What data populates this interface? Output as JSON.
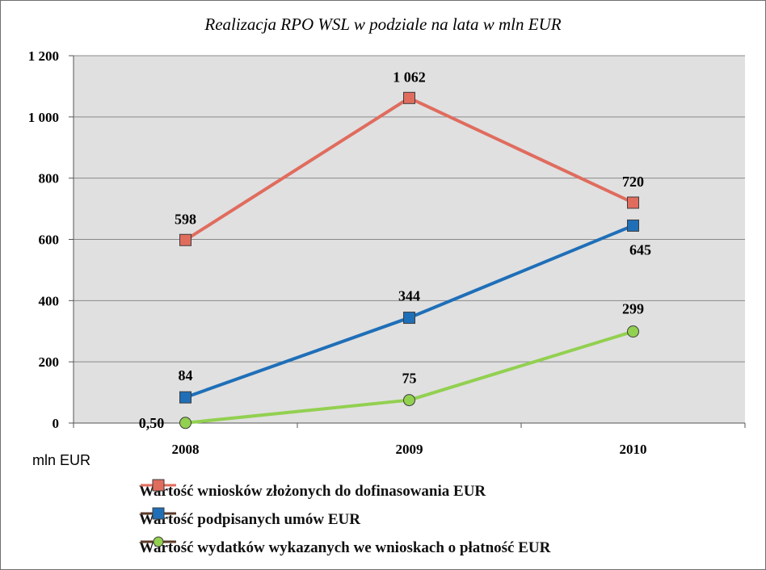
{
  "chart_data": {
    "type": "line",
    "title": "Realizacja RPO WSL w podziale na lata w mln EUR",
    "unit_label": "mln EUR",
    "categories": [
      "2008",
      "2009",
      "2010"
    ],
    "ylim": [
      0,
      1200
    ],
    "yticks": [
      0,
      200,
      400,
      600,
      800,
      1000,
      1200
    ],
    "ytick_labels": [
      "0",
      "200",
      "400",
      "600",
      "800",
      "1 000",
      "1 200"
    ],
    "grid": true,
    "legend_position": "bottom",
    "series": [
      {
        "name": "Wartość wniosków złożonych do dofinasowania EUR",
        "values": [
          598,
          1062,
          720
        ],
        "labels": [
          "598",
          "1 062",
          "720"
        ],
        "color": "#e06c5e",
        "marker": "square"
      },
      {
        "name": "Wartość podpisanych umów EUR",
        "values": [
          84,
          344,
          645
        ],
        "labels": [
          "84",
          "344",
          "645"
        ],
        "color": "#1f6fb8",
        "marker": "square"
      },
      {
        "name": "Wartość wydatków wykazanych we wnioskach o płatność EUR",
        "values": [
          0.5,
          75,
          299
        ],
        "labels": [
          "0,50",
          "75",
          "299"
        ],
        "color": "#92d050",
        "marker": "circle"
      }
    ]
  }
}
